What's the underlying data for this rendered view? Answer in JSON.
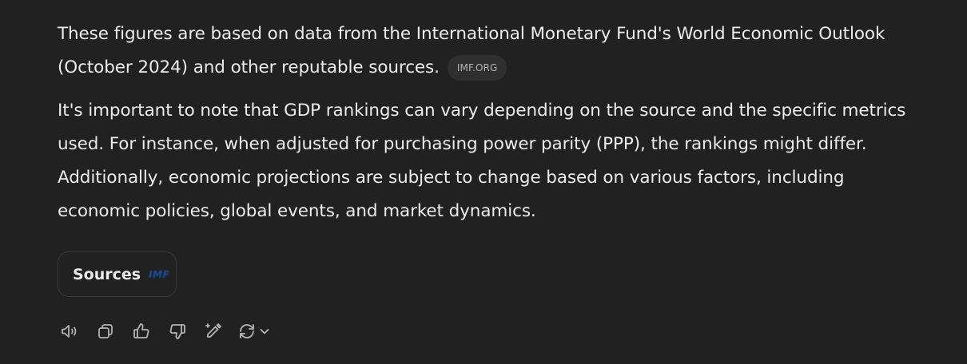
{
  "message": {
    "paragraph1": "These figures are based on data from the International Monetary Fund's World Economic Outlook (October 2024) and other reputable sources.",
    "citation_chip": "IMF.ORG",
    "paragraph2": "It's important to note that GDP rankings can vary depending on the source and the specific metrics used. For instance, when adjusted for purchasing power parity (PPP), the rankings might differ. Additionally, economic projections are subject to change based on various factors, including economic policies, global events, and market dynamics."
  },
  "sources": {
    "label": "Sources",
    "favicon_text": "IMF"
  },
  "actions": {
    "icons": [
      "read-aloud-icon",
      "copy-icon",
      "thumbs-up-icon",
      "thumbs-down-icon",
      "edit-in-canvas-icon",
      "regenerate-icon",
      "chevron-down-icon"
    ]
  },
  "colors": {
    "background": "#212121",
    "text": "#ececec",
    "muted": "#b4b4b4",
    "chip_bg": "#2f2f2f",
    "imf_blue": "#1b4fa0"
  }
}
